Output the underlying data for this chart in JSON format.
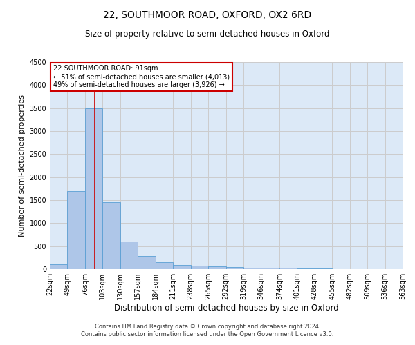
{
  "title": "22, SOUTHMOOR ROAD, OXFORD, OX2 6RD",
  "subtitle": "Size of property relative to semi-detached houses in Oxford",
  "xlabel": "Distribution of semi-detached houses by size in Oxford",
  "ylabel": "Number of semi-detached properties",
  "footer_line1": "Contains HM Land Registry data © Crown copyright and database right 2024.",
  "footer_line2": "Contains public sector information licensed under the Open Government Licence v3.0.",
  "annotation_title": "22 SOUTHMOOR ROAD: 91sqm",
  "annotation_line1": "← 51% of semi-detached houses are smaller (4,013)",
  "annotation_line2": "49% of semi-detached houses are larger (3,926) →",
  "property_size": 91,
  "bin_starts": [
    22,
    49,
    76,
    103,
    130,
    157,
    184,
    211,
    238,
    265,
    292,
    319,
    346,
    374,
    401,
    428,
    455,
    482,
    509,
    536
  ],
  "bin_labels": [
    "22sqm",
    "49sqm",
    "76sqm",
    "103sqm",
    "130sqm",
    "157sqm",
    "184sqm",
    "211sqm",
    "238sqm",
    "265sqm",
    "292sqm",
    "319sqm",
    "346sqm",
    "374sqm",
    "401sqm",
    "428sqm",
    "455sqm",
    "482sqm",
    "509sqm",
    "536sqm",
    "563sqm"
  ],
  "bar_values": [
    110,
    1700,
    3500,
    1450,
    600,
    280,
    155,
    90,
    80,
    55,
    50,
    35,
    30,
    28,
    18,
    10,
    7,
    5,
    3,
    2
  ],
  "bar_color": "#aec6e8",
  "bar_edge_color": "#5a9fd4",
  "grid_color": "#cccccc",
  "background_color": "#dce9f7",
  "red_line_color": "#cc0000",
  "annotation_box_color": "#cc0000",
  "ylim": [
    0,
    4500
  ],
  "yticks": [
    0,
    500,
    1000,
    1500,
    2000,
    2500,
    3000,
    3500,
    4000,
    4500
  ],
  "title_fontsize": 10,
  "subtitle_fontsize": 8.5,
  "ylabel_fontsize": 8,
  "xlabel_fontsize": 8.5,
  "tick_fontsize": 7,
  "footer_fontsize": 6,
  "annotation_fontsize": 7
}
